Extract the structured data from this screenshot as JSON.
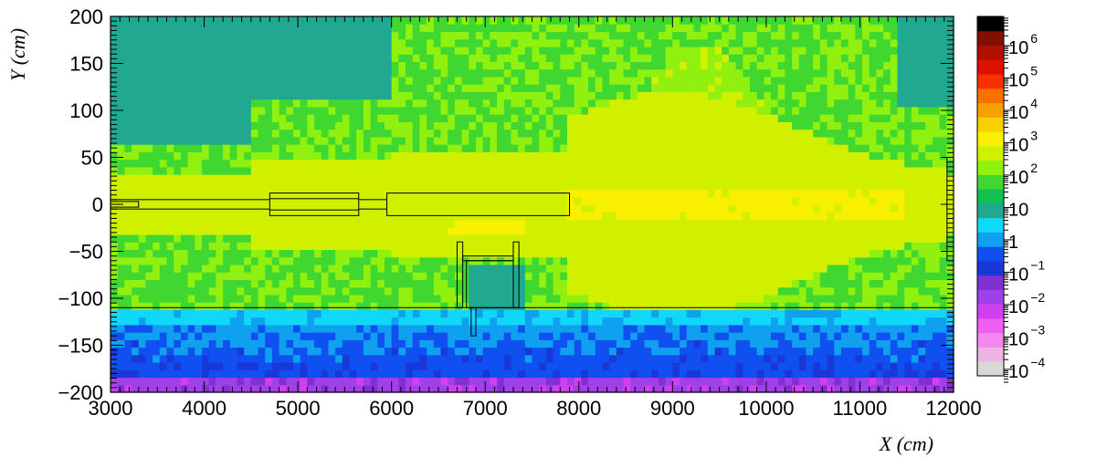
{
  "chart_data": {
    "type": "heatmap",
    "title": "",
    "xlabel": "X (cm)",
    "ylabel": "Y (cm)",
    "xlim": [
      3000,
      12000
    ],
    "ylim": [
      -200,
      200
    ],
    "x_ticks": [
      3000,
      4000,
      5000,
      6000,
      7000,
      8000,
      9000,
      10000,
      11000,
      12000
    ],
    "x_tick_labels": [
      "3000",
      "4000",
      "5000",
      "6000",
      "7000",
      "8000",
      "9000",
      "10000",
      "11000",
      "12000"
    ],
    "y_ticks": [
      -200,
      -150,
      -100,
      -50,
      0,
      50,
      100,
      150,
      200
    ],
    "y_tick_labels": [
      "−200",
      "−150",
      "−100",
      "−50",
      "0",
      "50",
      "100",
      "150",
      "200"
    ],
    "z_scale": "log",
    "colorbar_labels": [
      {
        "base": "10",
        "exp": "6",
        "value": 1000000
      },
      {
        "base": "10",
        "exp": "5",
        "value": 100000
      },
      {
        "base": "10",
        "exp": "4",
        "value": 10000
      },
      {
        "base": "10",
        "exp": "3",
        "value": 1000
      },
      {
        "base": "10",
        "exp": "2",
        "value": 100
      },
      {
        "base": "10",
        "exp": "",
        "value": 10
      },
      {
        "base": "1",
        "exp": "",
        "value": 1
      },
      {
        "base": "10",
        "exp": "−1",
        "value": 0.1
      },
      {
        "base": "10",
        "exp": "−2",
        "value": 0.01
      },
      {
        "base": "10",
        "exp": "−3",
        "value": 0.001
      },
      {
        "base": "10",
        "exp": "−4",
        "value": 0.0001
      }
    ],
    "palette": [
      "#d8d8d8",
      "#ecb4e0",
      "#f288f0",
      "#f060f0",
      "#d040f0",
      "#a040e8",
      "#8030d0",
      "#1838d8",
      "#1050f0",
      "#10a0f0",
      "#10d8f8",
      "#20a890",
      "#10c050",
      "#40d830",
      "#90f010",
      "#d0f000",
      "#f8f000",
      "#f8d000",
      "#f8a000",
      "#f87000",
      "#f83000",
      "#e01000",
      "#b01000",
      "#801000",
      "#000000"
    ],
    "regions": [
      {
        "zone": "background",
        "value": 100
      },
      {
        "zone": "left-top-band",
        "value": 10
      },
      {
        "zone": "right-top-corner",
        "value": 10
      },
      {
        "zone": "central-beam-core",
        "value": 1000
      },
      {
        "zone": "beam-halo",
        "value": 500
      },
      {
        "zone": "upper-shield-layer",
        "value": 2
      },
      {
        "zone": "lower-shield-layer",
        "value": 0.8
      },
      {
        "zone": "deep-shield-layer",
        "value": 0.02
      }
    ]
  }
}
